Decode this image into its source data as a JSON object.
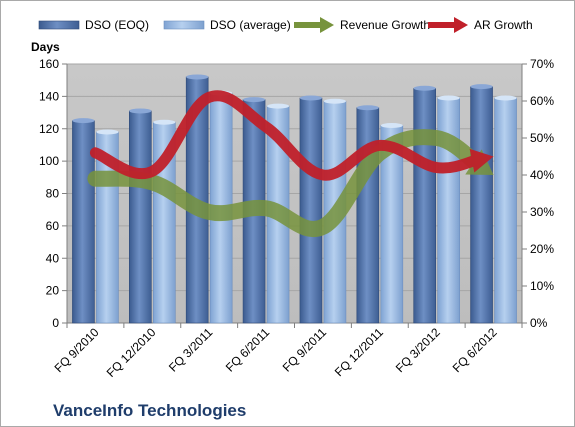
{
  "chart_data": {
    "type": "bar",
    "title": "VanceInfo Technologies",
    "ylabel": "Days",
    "ylim": [
      0,
      160
    ],
    "yticks": [
      0,
      20,
      40,
      60,
      80,
      100,
      120,
      140,
      160
    ],
    "y2lim": [
      0,
      70
    ],
    "y2ticks": [
      "0%",
      "10%",
      "20%",
      "30%",
      "40%",
      "50%",
      "60%",
      "70%"
    ],
    "categories": [
      "FQ 9/2010",
      "FQ 12/2010",
      "FQ 3/2011",
      "FQ 6/2011",
      "FQ 9/2011",
      "FQ 12/2011",
      "FQ 3/2012",
      "FQ 6/2012"
    ],
    "series": [
      {
        "name": "DSO (EOQ)",
        "kind": "bar",
        "axis": "left",
        "color": "#4f6fa3",
        "values": [
          125,
          131,
          152,
          138,
          139,
          133,
          145,
          146
        ]
      },
      {
        "name": "DSO (average)",
        "kind": "bar",
        "axis": "left",
        "color": "#8fb3e0",
        "values": [
          118,
          124,
          142,
          134,
          137,
          122,
          139,
          139
        ]
      },
      {
        "name": "Revenue Growth",
        "kind": "line",
        "axis": "right",
        "color": "#77933c",
        "unit": "%",
        "values": [
          39,
          38,
          30,
          31,
          26,
          46,
          50,
          40
        ]
      },
      {
        "name": "AR Growth",
        "kind": "line",
        "axis": "right",
        "color": "#c0202a",
        "unit": "%",
        "values": [
          46,
          41,
          61,
          53,
          40,
          48,
          42,
          45
        ]
      }
    ],
    "legend_position": "top",
    "plot_background": "#c0c0c0"
  }
}
